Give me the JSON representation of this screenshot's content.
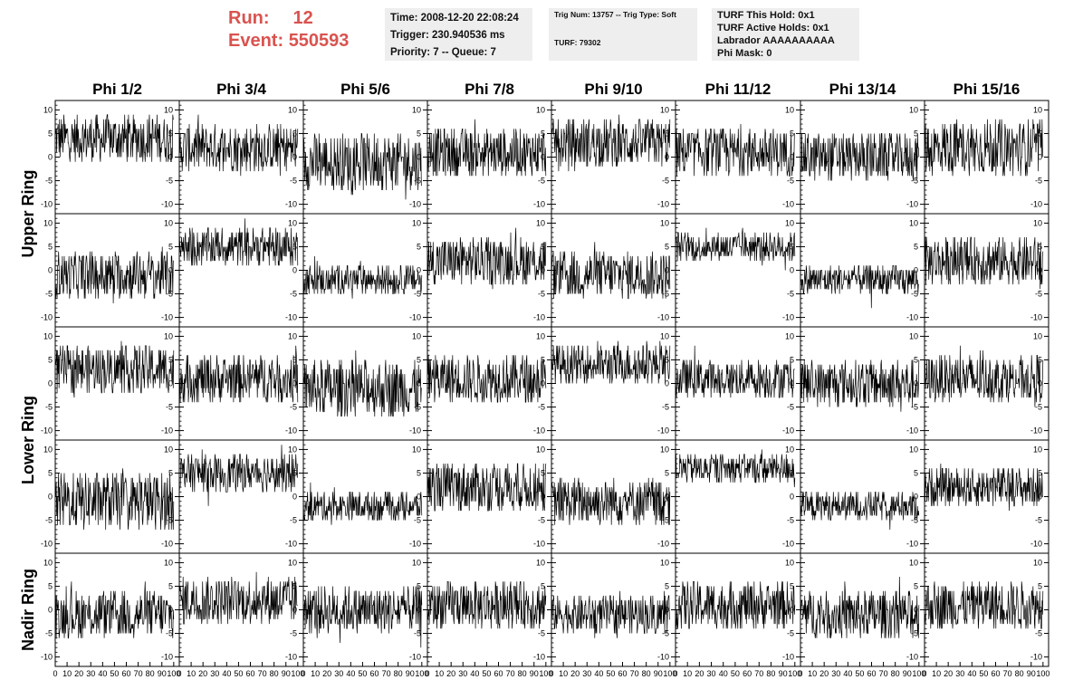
{
  "header": {
    "run_label": "Run:",
    "run_value": "12",
    "event_label": "Event:",
    "event_value": "550593",
    "time_line": "Time: 2008-12-20 22:08:24",
    "trigger_line": "Trigger: 230.940536 ms",
    "priority_line": "Priority: 7 -- Queue: 7",
    "trig_line": "Trig Num: 13757 -- Trig Type: Soft",
    "turf_line": "TURF: 79302",
    "turf_hold_line": "TURF This Hold: 0x1",
    "turf_active_line": "TURF Active Holds: 0x1",
    "labrador_line": "Labrador AAAAAAAAAA",
    "phi_mask_line": "Phi Mask: 0"
  },
  "colors": {
    "accent": "#d9534f",
    "info_bg": "#eeeeee",
    "trace": "#000000"
  },
  "chart_data": {
    "type": "line",
    "columns": [
      "Phi 1/2",
      "Phi 3/4",
      "Phi 5/6",
      "Phi 7/8",
      "Phi 9/10",
      "Phi 11/12",
      "Phi 13/14",
      "Phi 15/16"
    ],
    "ring_labels": [
      "Upper Ring",
      "Lower Ring",
      "Nadir Ring"
    ],
    "row_rings": [
      "upper",
      "upper",
      "lower",
      "lower",
      "nadir"
    ],
    "xlim": [
      0,
      100
    ],
    "ylim": [
      -12,
      12
    ],
    "yticks": [
      -10,
      -5,
      0,
      5,
      10
    ],
    "xtick_labels": [
      "0",
      "10",
      "20",
      "30",
      "40",
      "50",
      "60",
      "70",
      "80",
      "90",
      "100"
    ],
    "grid": false,
    "panels": [
      [
        {
          "offset": 4,
          "spread": 5
        },
        {
          "offset": 2,
          "spread": 5
        },
        {
          "offset": -1,
          "spread": 6
        },
        {
          "offset": 1,
          "spread": 5
        },
        {
          "offset": 3,
          "spread": 5
        },
        {
          "offset": 1,
          "spread": 5
        },
        {
          "offset": 0,
          "spread": 5
        },
        {
          "offset": 2,
          "spread": 6
        }
      ],
      [
        {
          "offset": -1,
          "spread": 5
        },
        {
          "offset": 5,
          "spread": 4
        },
        {
          "offset": -2,
          "spread": 3
        },
        {
          "offset": 2,
          "spread": 5
        },
        {
          "offset": -1,
          "spread": 5
        },
        {
          "offset": 5,
          "spread": 3
        },
        {
          "offset": -2,
          "spread": 3
        },
        {
          "offset": 2,
          "spread": 5
        }
      ],
      [
        {
          "offset": 3,
          "spread": 5
        },
        {
          "offset": 1,
          "spread": 5
        },
        {
          "offset": -1,
          "spread": 6
        },
        {
          "offset": 1,
          "spread": 5
        },
        {
          "offset": 4,
          "spread": 4
        },
        {
          "offset": 1,
          "spread": 4
        },
        {
          "offset": 0,
          "spread": 5
        },
        {
          "offset": 1,
          "spread": 5
        }
      ],
      [
        {
          "offset": -1,
          "spread": 6
        },
        {
          "offset": 5,
          "spread": 4
        },
        {
          "offset": -2,
          "spread": 3
        },
        {
          "offset": 2,
          "spread": 5
        },
        {
          "offset": -1,
          "spread": 5
        },
        {
          "offset": 6,
          "spread": 3
        },
        {
          "offset": -2,
          "spread": 3
        },
        {
          "offset": 2,
          "spread": 4
        }
      ],
      [
        {
          "offset": -1,
          "spread": 5
        },
        {
          "offset": 2,
          "spread": 5
        },
        {
          "offset": 0,
          "spread": 5
        },
        {
          "offset": 1,
          "spread": 5
        },
        {
          "offset": -1,
          "spread": 4
        },
        {
          "offset": 1,
          "spread": 5
        },
        {
          "offset": -1,
          "spread": 5
        },
        {
          "offset": 1,
          "spread": 5
        }
      ]
    ]
  }
}
